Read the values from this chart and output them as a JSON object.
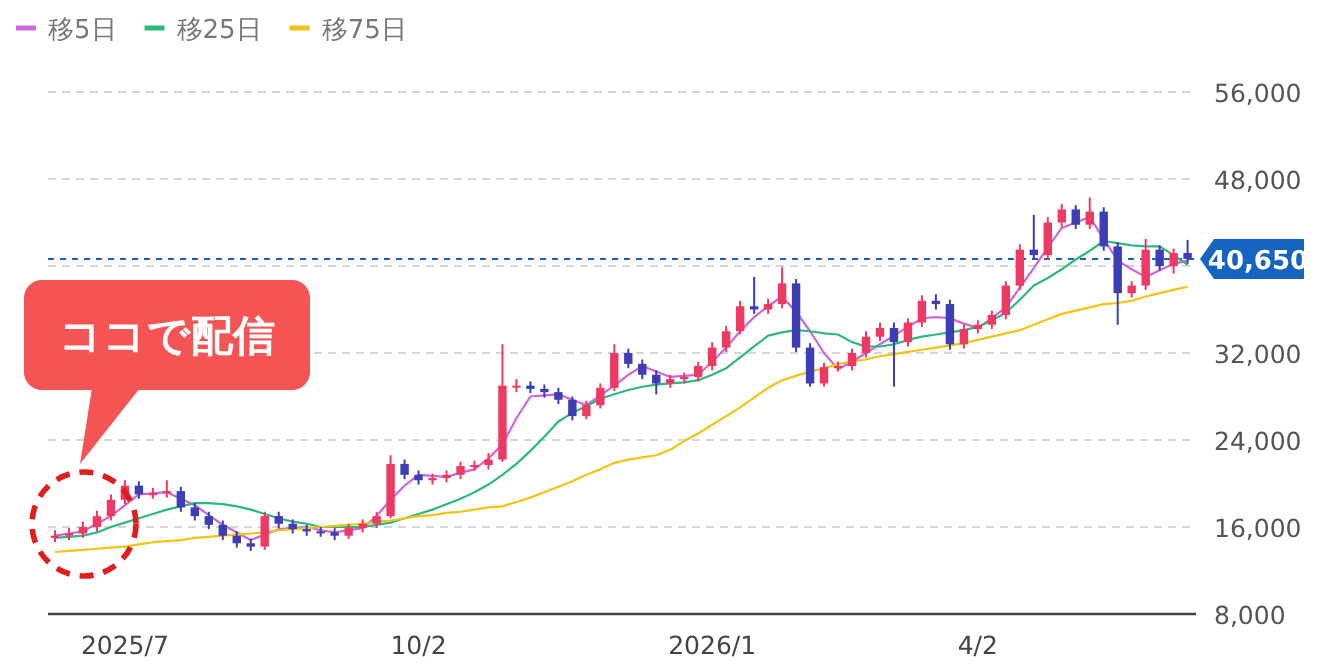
{
  "chart_data": {
    "type": "candlestick",
    "categories": [
      null,
      null,
      null,
      null,
      null,
      "2025/7",
      null,
      null,
      null,
      null,
      null,
      null,
      null,
      null,
      null,
      null,
      null,
      null,
      null,
      null,
      null,
      null,
      null,
      null,
      null,
      null,
      "10/2",
      null,
      null,
      null,
      null,
      null,
      null,
      null,
      null,
      null,
      null,
      null,
      null,
      null,
      null,
      null,
      null,
      null,
      null,
      null,
      null,
      "2026/1",
      null,
      null,
      null,
      null,
      null,
      null,
      null,
      null,
      null,
      null,
      null,
      null,
      null,
      null,
      null,
      null,
      null,
      null,
      "4/2",
      null,
      null,
      null,
      null,
      null,
      null,
      null,
      null,
      null,
      null,
      null,
      null,
      null,
      null,
      null
    ],
    "ohlc": [
      [
        15000,
        15700,
        14600,
        15200
      ],
      [
        15200,
        15900,
        14800,
        15400
      ],
      [
        15400,
        16500,
        15000,
        16000
      ],
      [
        16000,
        17500,
        15600,
        17000
      ],
      [
        17000,
        19000,
        16600,
        18500
      ],
      [
        18500,
        20300,
        18100,
        19800
      ],
      [
        19800,
        20200,
        18600,
        19000
      ],
      [
        19000,
        19600,
        18600,
        19100
      ],
      [
        19100,
        20300,
        18700,
        19300
      ],
      [
        19300,
        19700,
        17400,
        17800
      ],
      [
        17800,
        18200,
        16600,
        17000
      ],
      [
        17000,
        17400,
        15800,
        16200
      ],
      [
        16200,
        16600,
        14800,
        15200
      ],
      [
        15200,
        15600,
        14100,
        14500
      ],
      [
        14500,
        14900,
        13800,
        14200
      ],
      [
        14200,
        17400,
        13900,
        17000
      ],
      [
        17000,
        17400,
        15900,
        16300
      ],
      [
        16300,
        16700,
        15400,
        15800
      ],
      [
        15800,
        16200,
        15200,
        15600
      ],
      [
        15600,
        16000,
        15100,
        15500
      ],
      [
        15500,
        15900,
        14800,
        15200
      ],
      [
        15200,
        16300,
        14900,
        15900
      ],
      [
        15900,
        16700,
        15500,
        16300
      ],
      [
        16300,
        17400,
        15900,
        17000
      ],
      [
        17000,
        22600,
        16800,
        21800
      ],
      [
        21800,
        22200,
        20400,
        20800
      ],
      [
        20800,
        21200,
        19900,
        20300
      ],
      [
        20300,
        20900,
        19900,
        20500
      ],
      [
        20500,
        21200,
        20100,
        20800
      ],
      [
        20800,
        22000,
        20400,
        21600
      ],
      [
        21600,
        22100,
        21200,
        21700
      ],
      [
        21700,
        22800,
        21300,
        22200
      ],
      [
        22200,
        32800,
        22000,
        29000
      ],
      [
        29000,
        29600,
        28400,
        29000
      ],
      [
        29000,
        29400,
        28300,
        28700
      ],
      [
        28700,
        29100,
        27900,
        28400
      ],
      [
        28400,
        28800,
        27300,
        27700
      ],
      [
        27700,
        28000,
        25800,
        26200
      ],
      [
        26200,
        27600,
        25900,
        27200
      ],
      [
        27200,
        29200,
        26900,
        28800
      ],
      [
        28800,
        32800,
        28500,
        32000
      ],
      [
        32000,
        32400,
        30600,
        31000
      ],
      [
        31000,
        31400,
        29600,
        30000
      ],
      [
        30000,
        30400,
        28200,
        29200
      ],
      [
        29200,
        30000,
        28800,
        29600
      ],
      [
        29600,
        30200,
        29200,
        29800
      ],
      [
        29800,
        31200,
        29400,
        30800
      ],
      [
        30800,
        33000,
        30400,
        32500
      ],
      [
        32500,
        34500,
        32100,
        34000
      ],
      [
        34000,
        36800,
        33700,
        36300
      ],
      [
        36300,
        39000,
        35600,
        36000
      ],
      [
        36000,
        37000,
        35600,
        36500
      ],
      [
        36500,
        39900,
        36100,
        38400
      ],
      [
        38400,
        38800,
        32100,
        32500
      ],
      [
        32500,
        32900,
        28900,
        29200
      ],
      [
        29200,
        31100,
        28900,
        30700
      ],
      [
        30700,
        31200,
        30300,
        30800
      ],
      [
        30800,
        32400,
        30400,
        32000
      ],
      [
        32000,
        34000,
        31600,
        33500
      ],
      [
        33500,
        34800,
        33100,
        34300
      ],
      [
        34300,
        34800,
        28900,
        33000
      ],
      [
        33000,
        35200,
        32600,
        34800
      ],
      [
        34800,
        37300,
        34400,
        36800
      ],
      [
        36800,
        37400,
        36000,
        36500
      ],
      [
        36500,
        36900,
        32300,
        32800
      ],
      [
        32800,
        34600,
        32400,
        34200
      ],
      [
        34200,
        35000,
        33800,
        34600
      ],
      [
        34600,
        35900,
        34200,
        35500
      ],
      [
        35500,
        38600,
        35100,
        38200
      ],
      [
        38200,
        42000,
        37800,
        41500
      ],
      [
        41500,
        44700,
        40600,
        41000
      ],
      [
        41000,
        44500,
        40600,
        44000
      ],
      [
        44000,
        45700,
        43600,
        45200
      ],
      [
        45200,
        45600,
        43400,
        43800
      ],
      [
        43800,
        46300,
        43400,
        45000
      ],
      [
        45000,
        45400,
        41400,
        41800
      ],
      [
        41800,
        42200,
        34600,
        37500
      ],
      [
        37500,
        38600,
        37100,
        38200
      ],
      [
        38200,
        42500,
        37800,
        41500
      ],
      [
        41500,
        41900,
        39600,
        40000
      ],
      [
        40000,
        41600,
        39300,
        41200
      ],
      [
        41200,
        42400,
        40200,
        40650
      ]
    ],
    "colors": [
      "#ee3a63",
      "#ee3a63",
      "#ee3a63",
      "#ee3a63",
      "#ee3a63",
      "#ee3a63",
      "#3d3db5",
      "#ee3a63",
      "#ee3a63",
      "#3d3db5",
      "#3d3db5",
      "#3d3db5",
      "#3d3db5",
      "#3d3db5",
      "#3d3db5",
      "#ee3a63",
      "#3d3db5",
      "#3d3db5",
      "#3d3db5",
      "#3d3db5",
      "#3d3db5",
      "#ee3a63",
      "#ee3a63",
      "#ee3a63",
      "#ee3a63",
      "#3d3db5",
      "#3d3db5",
      "#ee3a63",
      "#ee3a63",
      "#ee3a63",
      "#ee3a63",
      "#ee3a63",
      "#ee3a63",
      "#ee3a63",
      "#3d3db5",
      "#3d3db5",
      "#3d3db5",
      "#3d3db5",
      "#ee3a63",
      "#ee3a63",
      "#ee3a63",
      "#3d3db5",
      "#3d3db5",
      "#3d3db5",
      "#ee3a63",
      "#ee3a63",
      "#ee3a63",
      "#ee3a63",
      "#ee3a63",
      "#ee3a63",
      "#3d3db5",
      "#ee3a63",
      "#ee3a63",
      "#3d3db5",
      "#3d3db5",
      "#ee3a63",
      "#ee3a63",
      "#ee3a63",
      "#ee3a63",
      "#ee3a63",
      "#3d3db5",
      "#ee3a63",
      "#ee3a63",
      "#3d3db5",
      "#3d3db5",
      "#ee3a63",
      "#ee3a63",
      "#ee3a63",
      "#ee3a63",
      "#ee3a63",
      "#3d3db5",
      "#ee3a63",
      "#ee3a63",
      "#3d3db5",
      "#ee3a63",
      "#3d3db5",
      "#3d3db5",
      "#ee3a63",
      "#ee3a63",
      "#3d3db5",
      "#ee3a63",
      "#3d3db5"
    ],
    "series": [
      {
        "type": "line",
        "name": "移5日",
        "color": "#cc66dd",
        "values": [
          15200,
          15400,
          15600,
          16300,
          17000,
          18000,
          19000,
          19100,
          19200,
          18600,
          18000,
          17100,
          16200,
          15500,
          14800,
          15300,
          15800,
          15900,
          16000,
          15700,
          15500,
          15700,
          15900,
          17000,
          18500,
          19800,
          20800,
          20700,
          20600,
          21000,
          21300,
          22300,
          23600,
          26000,
          28000,
          28100,
          28200,
          27700,
          27200,
          28100,
          29000,
          30000,
          30800,
          30300,
          29800,
          29900,
          30000,
          31200,
          32500,
          34000,
          35300,
          36300,
          37200,
          35800,
          34000,
          32000,
          30500,
          31200,
          32000,
          32800,
          33600,
          34400,
          35200,
          35300,
          35200,
          34700,
          34300,
          35200,
          36200,
          38000,
          39800,
          41700,
          43500,
          44000,
          44500,
          42500,
          40500,
          39700,
          39000,
          39600,
          40200,
          40500
        ]
      },
      {
        "type": "line",
        "name": "移25日",
        "color": "#2eb87e",
        "values": [
          15000,
          15100,
          15200,
          15500,
          16000,
          16400,
          16800,
          17200,
          17600,
          17900,
          18200,
          18200,
          18100,
          17900,
          17600,
          17200,
          16800,
          16500,
          16300,
          16000,
          16000,
          16000,
          16000,
          16200,
          16400,
          16800,
          17200,
          17600,
          18100,
          18600,
          19200,
          19900,
          20800,
          21800,
          23000,
          24300,
          25700,
          26500,
          27100,
          27800,
          28200,
          28600,
          28900,
          29100,
          29200,
          29300,
          29500,
          30000,
          30600,
          31600,
          32600,
          33600,
          33900,
          34100,
          34000,
          33800,
          33700,
          33000,
          32600,
          32600,
          32800,
          33200,
          33500,
          33700,
          33900,
          34100,
          34400,
          35000,
          35700,
          36900,
          38200,
          38900,
          39700,
          40600,
          41400,
          42300,
          42100,
          41900,
          41800,
          41800,
          41000,
          40100
        ]
      },
      {
        "type": "line",
        "name": "移75日",
        "color": "#f2c416",
        "values": [
          13700,
          13800,
          13900,
          14000,
          14100,
          14200,
          14400,
          14600,
          14700,
          14800,
          15000,
          15100,
          15200,
          15300,
          15400,
          15500,
          15700,
          15800,
          15900,
          16000,
          16100,
          16200,
          16300,
          16500,
          16600,
          16800,
          17000,
          17100,
          17300,
          17400,
          17600,
          17800,
          17900,
          18300,
          18700,
          19200,
          19700,
          20200,
          20800,
          21300,
          21900,
          22200,
          22400,
          22600,
          23100,
          23900,
          24600,
          25400,
          26200,
          27000,
          27900,
          28800,
          29500,
          29900,
          30300,
          30600,
          31000,
          31200,
          31400,
          31700,
          31900,
          32100,
          32300,
          32500,
          32700,
          32900,
          33200,
          33500,
          33800,
          34100,
          34600,
          35100,
          35600,
          35900,
          36200,
          36500,
          36600,
          36800,
          37200,
          37500,
          37800,
          38100
        ]
      }
    ],
    "ylim": [
      8000,
      56000
    ],
    "yticks": [
      {
        "value": 8000,
        "label": "8,000"
      },
      {
        "value": 16000,
        "label": "16,000"
      },
      {
        "value": 24000,
        "label": "24,000"
      },
      {
        "value": 32000,
        "label": "32,000"
      },
      {
        "value": 40000,
        "label": null
      },
      {
        "value": 48000,
        "label": "48,000"
      },
      {
        "value": 56000,
        "label": "56,000"
      }
    ],
    "grid": "y",
    "legend": "top left",
    "ref_lines": [
      {
        "axis": "y",
        "value": 40650,
        "label": "40,650",
        "color": "#1565c0",
        "line_style": "dashed"
      }
    ],
    "annotations": [
      "ココで配信"
    ]
  }
}
